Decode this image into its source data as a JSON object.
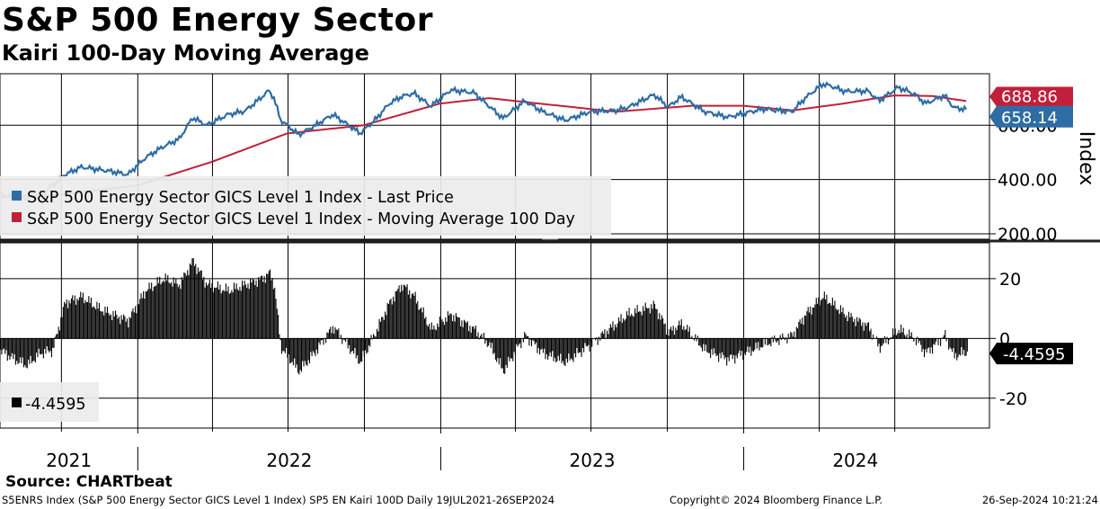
{
  "title": "S&P 500 Energy Sector",
  "subtitle": "Kairi 100-Day Moving Average",
  "source": "Source: CHARTbeat",
  "footer": {
    "left": "S5ENRS Index (S&P 500 Energy Sector GICS Level 1 Index) SP5 EN Kairi 100D  Daily 19JUL2021-26SEP2024",
    "middle": "Copyright© 2024 Bloomberg Finance L.P.",
    "right": "26-Sep-2024 10:21:24"
  },
  "colors": {
    "price": "#2e6da4",
    "moving_average": "#c0203a",
    "kairi": "#000000",
    "grid": "#000000"
  },
  "chart_data": [
    {
      "type": "line",
      "panel": "upper",
      "ylabel": "Index",
      "ylim": [
        180,
        790
      ],
      "yticks": [
        200,
        400,
        600
      ],
      "ytick_labels": [
        "200.00",
        "400.00",
        "600.00"
      ],
      "legend_position": "left, inside",
      "grid": true,
      "series": [
        {
          "name": "S&P 500 Energy Sector GICS Level 1 Index - Last Price",
          "last_label": "658.14",
          "points": [
            [
              "2021-07-19",
              345
            ],
            [
              "2021-08-20",
              330
            ],
            [
              "2021-09-10",
              350
            ],
            [
              "2021-10-05",
              418
            ],
            [
              "2021-10-25",
              446
            ],
            [
              "2021-11-30",
              430
            ],
            [
              "2021-12-20",
              418
            ],
            [
              "2022-01-10",
              480
            ],
            [
              "2022-01-31",
              520
            ],
            [
              "2022-02-20",
              550
            ],
            [
              "2022-03-08",
              628
            ],
            [
              "2022-03-25",
              600
            ],
            [
              "2022-04-20",
              640
            ],
            [
              "2022-05-10",
              652
            ],
            [
              "2022-05-25",
              690
            ],
            [
              "2022-06-08",
              728
            ],
            [
              "2022-06-14",
              700
            ],
            [
              "2022-06-22",
              620
            ],
            [
              "2022-07-14",
              565
            ],
            [
              "2022-08-01",
              596
            ],
            [
              "2022-08-24",
              640
            ],
            [
              "2022-09-26",
              570
            ],
            [
              "2022-10-14",
              620
            ],
            [
              "2022-10-31",
              680
            ],
            [
              "2022-11-15",
              706
            ],
            [
              "2022-11-30",
              718
            ],
            [
              "2022-12-20",
              670
            ],
            [
              "2023-01-13",
              730
            ],
            [
              "2023-02-10",
              720
            ],
            [
              "2023-03-17",
              625
            ],
            [
              "2023-04-12",
              690
            ],
            [
              "2023-05-04",
              650
            ],
            [
              "2023-05-31",
              618
            ],
            [
              "2023-06-30",
              650
            ],
            [
              "2023-07-31",
              655
            ],
            [
              "2023-08-14",
              665
            ],
            [
              "2023-09-15",
              713
            ],
            [
              "2023-10-02",
              668
            ],
            [
              "2023-10-18",
              705
            ],
            [
              "2023-11-15",
              650
            ],
            [
              "2023-12-13",
              630
            ],
            [
              "2024-01-10",
              650
            ],
            [
              "2024-01-24",
              660
            ],
            [
              "2024-02-28",
              650
            ],
            [
              "2024-03-15",
              700
            ],
            [
              "2024-04-05",
              752
            ],
            [
              "2024-04-15",
              745
            ],
            [
              "2024-05-02",
              725
            ],
            [
              "2024-05-30",
              726
            ],
            [
              "2024-06-12",
              690
            ],
            [
              "2024-07-05",
              740
            ],
            [
              "2024-07-25",
              715
            ],
            [
              "2024-08-07",
              680
            ],
            [
              "2024-08-30",
              710
            ],
            [
              "2024-09-10",
              665
            ],
            [
              "2024-09-26",
              658.14
            ]
          ]
        },
        {
          "name": "S&P 500 Energy Sector GICS Level 1 Index - Moving Average 100 Day",
          "last_label": "688.86",
          "points": [
            [
              "2021-07-19",
              335
            ],
            [
              "2021-10-01",
              345
            ],
            [
              "2021-12-31",
              378
            ],
            [
              "2022-03-31",
              465
            ],
            [
              "2022-06-30",
              570
            ],
            [
              "2022-09-30",
              600
            ],
            [
              "2022-12-31",
              680
            ],
            [
              "2023-02-28",
              700
            ],
            [
              "2023-04-30",
              680
            ],
            [
              "2023-07-31",
              650
            ],
            [
              "2023-10-31",
              672
            ],
            [
              "2023-12-31",
              672
            ],
            [
              "2024-02-29",
              655
            ],
            [
              "2024-04-30",
              680
            ],
            [
              "2024-06-30",
              710
            ],
            [
              "2024-08-15",
              708
            ],
            [
              "2024-09-26",
              688.86
            ]
          ]
        }
      ]
    },
    {
      "type": "bar",
      "panel": "lower",
      "ylim": [
        -30,
        32
      ],
      "yticks": [
        -20,
        0,
        20
      ],
      "ytick_labels": [
        "-20",
        "0",
        "20"
      ],
      "grid": true,
      "series": [
        {
          "name": "",
          "legend_label": "-4.4595",
          "last_label": "-4.4595",
          "last_value": -4.4595,
          "points": [
            [
              "2021-07-19",
              -4
            ],
            [
              "2021-08-05",
              -7
            ],
            [
              "2021-08-20",
              -9
            ],
            [
              "2021-09-05",
              -5
            ],
            [
              "2021-09-20",
              -4
            ],
            [
              "2021-10-05",
              12
            ],
            [
              "2021-10-25",
              14
            ],
            [
              "2021-11-15",
              10
            ],
            [
              "2021-12-01",
              8
            ],
            [
              "2021-12-20",
              6
            ],
            [
              "2022-01-10",
              16
            ],
            [
              "2022-02-01",
              20
            ],
            [
              "2022-02-20",
              18
            ],
            [
              "2022-03-08",
              26
            ],
            [
              "2022-03-25",
              18
            ],
            [
              "2022-04-20",
              16
            ],
            [
              "2022-05-10",
              18
            ],
            [
              "2022-05-31",
              20
            ],
            [
              "2022-06-08",
              22
            ],
            [
              "2022-06-14",
              18
            ],
            [
              "2022-06-22",
              -3
            ],
            [
              "2022-07-14",
              -11
            ],
            [
              "2022-08-01",
              -5
            ],
            [
              "2022-08-24",
              4
            ],
            [
              "2022-09-26",
              -8
            ],
            [
              "2022-10-14",
              2
            ],
            [
              "2022-10-31",
              12
            ],
            [
              "2022-11-15",
              18
            ],
            [
              "2022-11-30",
              14
            ],
            [
              "2022-12-20",
              3
            ],
            [
              "2023-01-13",
              8
            ],
            [
              "2023-02-10",
              3
            ],
            [
              "2023-02-28",
              -2
            ],
            [
              "2023-03-17",
              -11
            ],
            [
              "2023-04-12",
              1
            ],
            [
              "2023-05-04",
              -5
            ],
            [
              "2023-05-31",
              -8
            ],
            [
              "2023-06-30",
              -2
            ],
            [
              "2023-07-31",
              5
            ],
            [
              "2023-08-14",
              8
            ],
            [
              "2023-09-15",
              11
            ],
            [
              "2023-10-02",
              2
            ],
            [
              "2023-10-18",
              5
            ],
            [
              "2023-11-15",
              -4
            ],
            [
              "2023-12-13",
              -7
            ],
            [
              "2024-01-10",
              -4
            ],
            [
              "2024-01-24",
              -2
            ],
            [
              "2024-02-28",
              1
            ],
            [
              "2024-03-15",
              8
            ],
            [
              "2024-04-05",
              14
            ],
            [
              "2024-04-15",
              12
            ],
            [
              "2024-05-02",
              8
            ],
            [
              "2024-05-30",
              4
            ],
            [
              "2024-06-12",
              -3
            ],
            [
              "2024-07-05",
              3
            ],
            [
              "2024-07-25",
              0
            ],
            [
              "2024-08-07",
              -5
            ],
            [
              "2024-08-30",
              1
            ],
            [
              "2024-09-10",
              -6
            ],
            [
              "2024-09-26",
              -4.4595
            ]
          ]
        }
      ]
    }
  ],
  "x_axis": {
    "start": "2021-07-19",
    "end": "2024-09-26",
    "year_labels": [
      "2021",
      "2022",
      "2023",
      "2024"
    ]
  }
}
